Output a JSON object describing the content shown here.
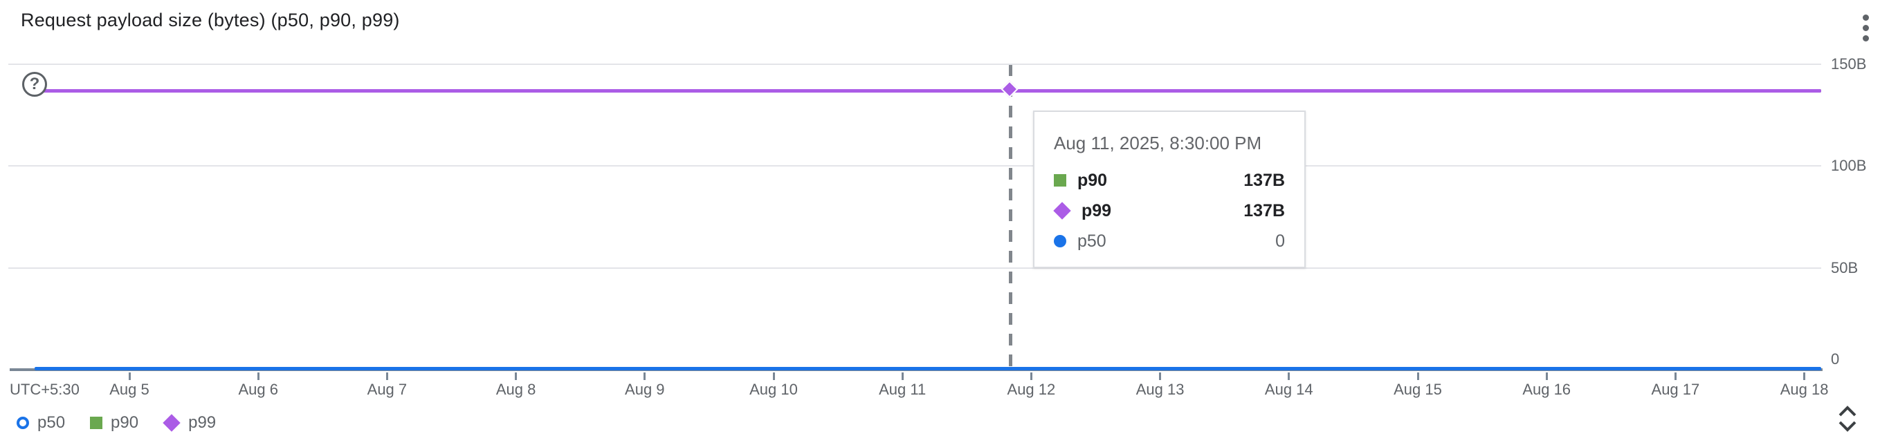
{
  "card": {
    "title": "Request payload size (bytes) (p50, p90, p99)"
  },
  "chart_data": {
    "type": "line",
    "title": "Request payload size (bytes) (p50, p90, p99)",
    "y_unit": "bytes",
    "ylim": [
      0,
      150
    ],
    "y_tick_labels": [
      "150B",
      "100B",
      "50B",
      "0"
    ],
    "timezone_label": "UTC+5:30",
    "x_tick_labels": [
      "Aug 5",
      "Aug 6",
      "Aug 7",
      "Aug 8",
      "Aug 9",
      "Aug 10",
      "Aug 11",
      "Aug 12",
      "Aug 13",
      "Aug 14",
      "Aug 15",
      "Aug 16",
      "Aug 17",
      "Aug 18"
    ],
    "grid": true,
    "legend_position": "bottom-left",
    "series": [
      {
        "name": "p50",
        "marker": "circle",
        "color": "#1a73e8",
        "constant_value": 0,
        "display_value": "0"
      },
      {
        "name": "p90",
        "marker": "square",
        "color": "#6aa84f",
        "constant_value": 137,
        "display_value": "137B"
      },
      {
        "name": "p99",
        "marker": "diamond",
        "color": "#ab5ce6",
        "constant_value": 137,
        "display_value": "137B"
      }
    ],
    "annotation": {
      "glyph": "?"
    }
  },
  "tooltip": {
    "timestamp": "Aug 11, 2025, 8:30:00 PM",
    "rows": [
      {
        "series": "p90",
        "value": "137B",
        "marker": "square",
        "color": "#6aa84f",
        "emphasis": true
      },
      {
        "series": "p99",
        "value": "137B",
        "marker": "diamond",
        "color": "#ab5ce6",
        "emphasis": true
      },
      {
        "series": "p50",
        "value": "0",
        "marker": "circle",
        "color": "#1a73e8",
        "emphasis": false
      }
    ]
  },
  "legend": {
    "items": [
      {
        "label": "p50",
        "marker": "circle-outline",
        "color": "#1a73e8"
      },
      {
        "label": "p90",
        "marker": "square",
        "color": "#6aa84f"
      },
      {
        "label": "p99",
        "marker": "diamond",
        "color": "#ab5ce6"
      }
    ]
  },
  "colors": {
    "text_primary": "#202124",
    "text_secondary": "#5f6368",
    "gridline": "#e3e4e9",
    "axis": "#7a8795",
    "crosshair": "#81868c"
  }
}
